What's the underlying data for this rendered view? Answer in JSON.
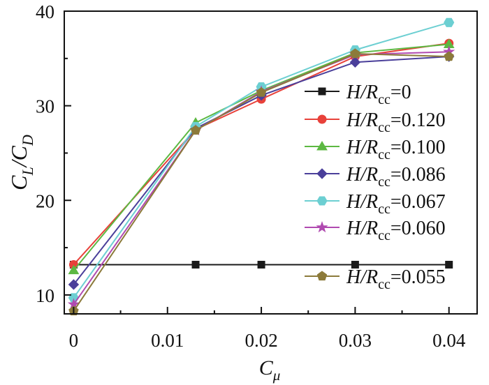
{
  "chart_data": {
    "type": "line",
    "x": [
      0,
      0.013,
      0.02,
      0.03,
      0.04
    ],
    "x_tick_values": [
      0,
      0.01,
      0.02,
      0.03,
      0.04
    ],
    "x_tick_labels": [
      "0",
      "0.01",
      "0.02",
      "0.03",
      "0.04"
    ],
    "y_tick_values": [
      10,
      20,
      30,
      40
    ],
    "y_tick_labels": [
      "10",
      "20",
      "30",
      "40"
    ],
    "xlim": [
      -0.001,
      0.043
    ],
    "ylim": [
      8,
      40
    ],
    "xlabel": "C_μ",
    "ylabel": "C_L/C_D",
    "grid": false,
    "legend_position": "right",
    "series": [
      {
        "name": "H/R_cc=0",
        "prefix": "H/R",
        "sub": "cc",
        "value": "=0",
        "color": "#1a1a1a",
        "marker": "square",
        "values": [
          13.2,
          13.2,
          13.2,
          13.2,
          13.2
        ]
      },
      {
        "name": "H/R_cc=0.120",
        "prefix": "H/R",
        "sub": "cc",
        "value": "=0.120",
        "color": "#e8413a",
        "marker": "circle",
        "values": [
          13.2,
          27.5,
          30.7,
          35.2,
          36.6
        ]
      },
      {
        "name": "H/R_cc=0.100",
        "prefix": "H/R",
        "sub": "cc",
        "value": "=0.100",
        "color": "#5cb842",
        "marker": "triangle",
        "values": [
          12.6,
          28.2,
          31.6,
          35.6,
          36.5
        ]
      },
      {
        "name": "H/R_cc=0.086",
        "prefix": "H/R",
        "sub": "cc",
        "value": "=0.086",
        "color": "#4a3f9a",
        "marker": "diamond",
        "values": [
          11.1,
          27.6,
          31.1,
          34.6,
          35.2
        ]
      },
      {
        "name": "H/R_cc=0.067",
        "prefix": "H/R",
        "sub": "cc",
        "value": "=0.067",
        "color": "#6ccfd2",
        "marker": "hexagon",
        "values": [
          9.7,
          27.8,
          32.0,
          35.9,
          38.8
        ]
      },
      {
        "name": "H/R_cc=0.060",
        "prefix": "H/R",
        "sub": "cc",
        "value": "=0.060",
        "color": "#b04ab0",
        "marker": "star",
        "values": [
          9.0,
          27.4,
          31.5,
          35.4,
          35.7
        ]
      },
      {
        "name": "H/R_cc=0.055",
        "prefix": "H/R",
        "sub": "cc",
        "value": "=0.055",
        "color": "#8c7a3a",
        "marker": "pentagon",
        "values": [
          8.3,
          27.4,
          31.4,
          35.5,
          35.2
        ]
      }
    ]
  }
}
